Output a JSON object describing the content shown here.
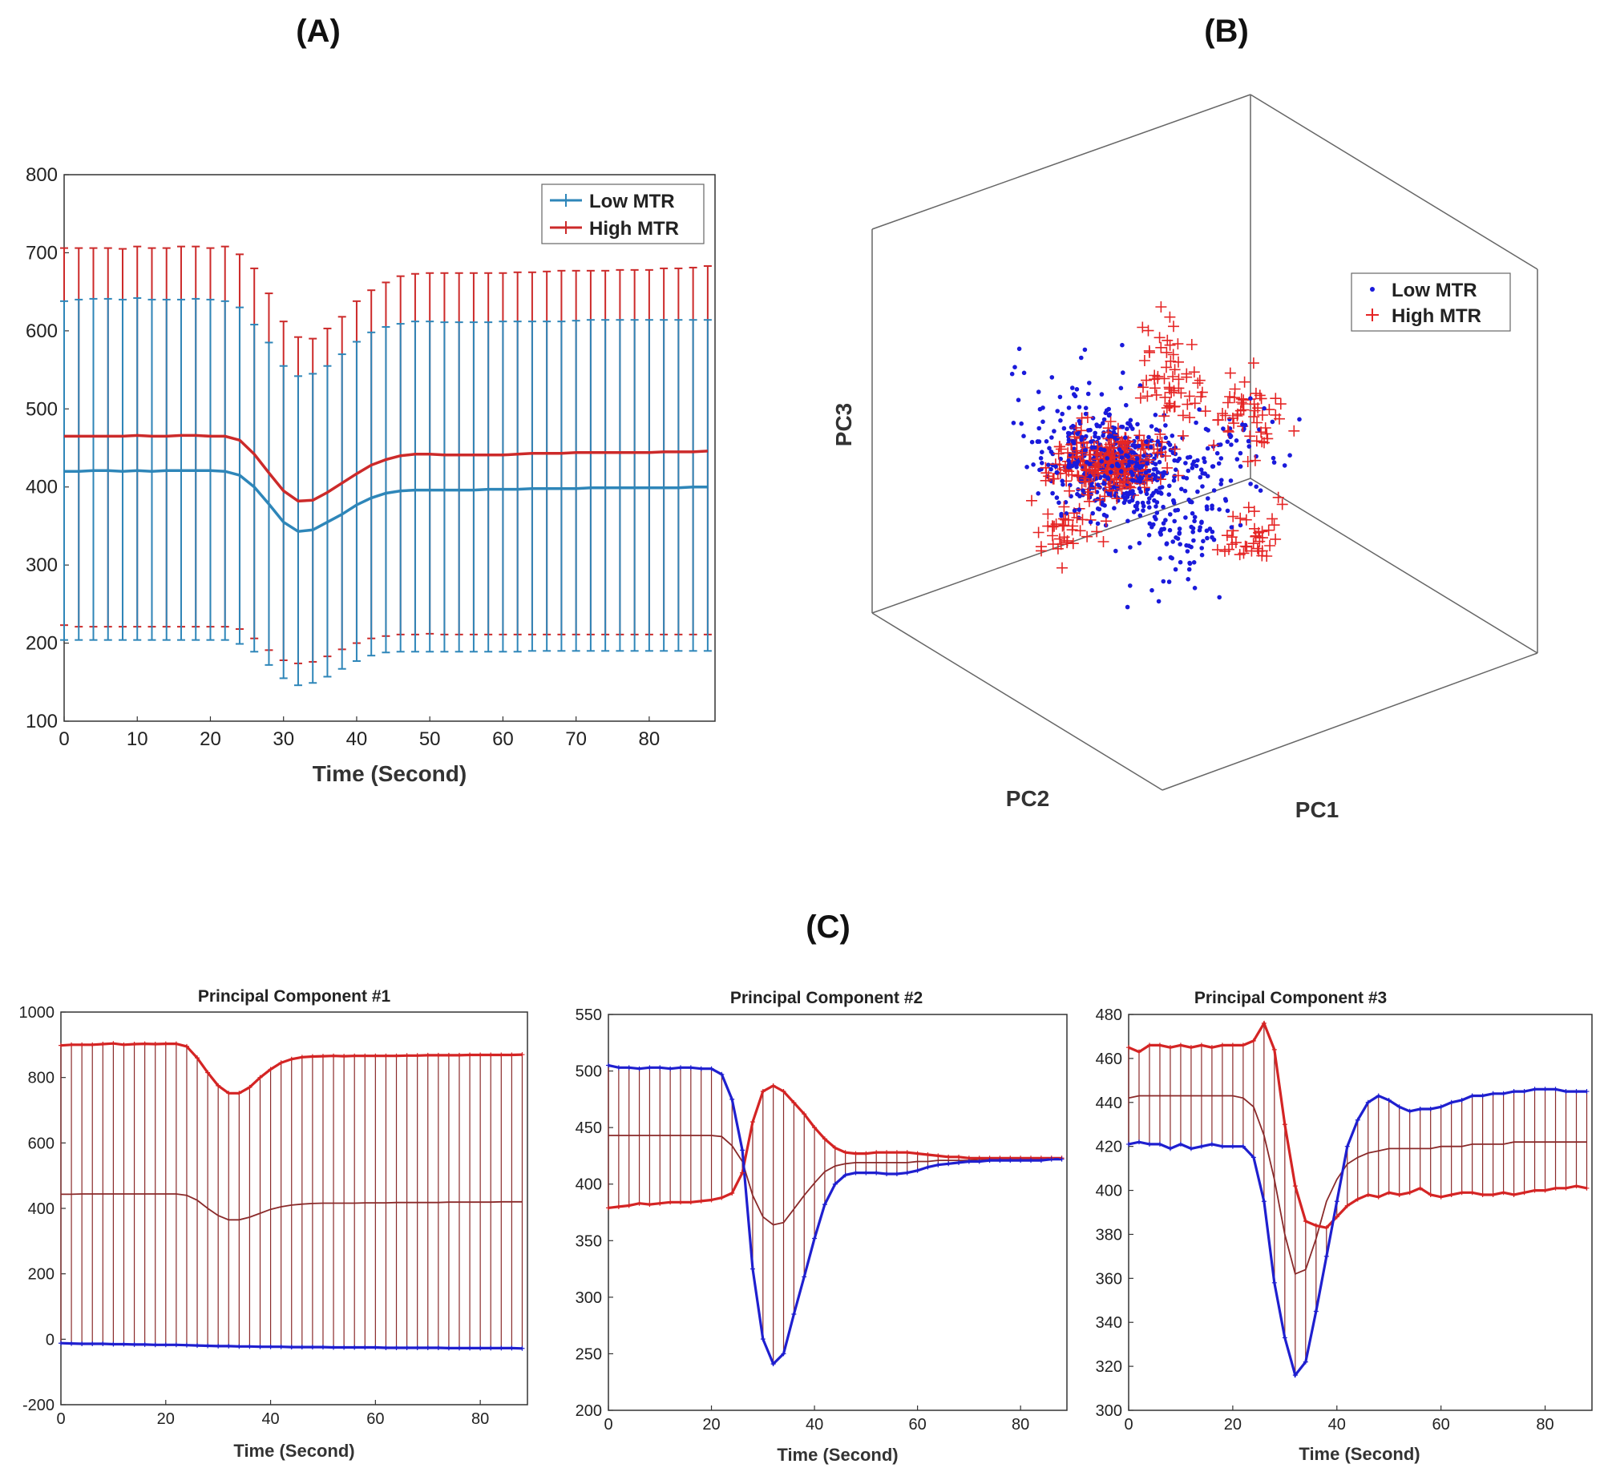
{
  "panels": {
    "a": "(A)",
    "b": "(B)",
    "c": "(C)"
  },
  "colors": {
    "low_a": "#2e86b9",
    "high_a": "#cc2a2a",
    "low_b": "#1a1adb",
    "high_b": "#e52525",
    "pc_low": "#1f1fcf",
    "pc_high": "#d42424",
    "pc_mean": "#8a2a2a"
  },
  "chart_data": [
    {
      "id": "A",
      "type": "line",
      "title": "",
      "xlabel": "Time (Second)",
      "ylabel": "",
      "xlim": [
        0,
        89
      ],
      "ylim": [
        100,
        800
      ],
      "xticks": [
        0,
        10,
        20,
        30,
        40,
        50,
        60,
        70,
        80
      ],
      "yticks": [
        100,
        200,
        300,
        400,
        500,
        600,
        700,
        800
      ],
      "error_bars": true,
      "legend": {
        "position": "top-right",
        "entries": [
          "Low MTR",
          "High MTR"
        ]
      },
      "x": [
        0,
        2,
        4,
        6,
        8,
        10,
        12,
        14,
        16,
        18,
        20,
        22,
        24,
        26,
        28,
        30,
        32,
        34,
        36,
        38,
        40,
        42,
        44,
        46,
        48,
        50,
        52,
        54,
        56,
        58,
        60,
        62,
        64,
        66,
        68,
        70,
        72,
        74,
        76,
        78,
        80,
        82,
        84,
        86,
        88
      ],
      "series": [
        {
          "name": "Low MTR",
          "values": [
            420,
            420,
            421,
            421,
            420,
            421,
            420,
            421,
            421,
            421,
            421,
            420,
            415,
            400,
            378,
            355,
            343,
            345,
            355,
            365,
            377,
            386,
            392,
            395,
            396,
            396,
            396,
            396,
            396,
            397,
            397,
            397,
            398,
            398,
            398,
            398,
            399,
            399,
            399,
            399,
            399,
            399,
            399,
            400,
            400
          ],
          "upper": [
            638,
            640,
            641,
            641,
            640,
            642,
            640,
            640,
            640,
            641,
            640,
            638,
            630,
            608,
            585,
            555,
            542,
            545,
            555,
            570,
            586,
            598,
            605,
            609,
            612,
            612,
            611,
            611,
            611,
            611,
            612,
            612,
            612,
            612,
            612,
            613,
            614,
            614,
            614,
            614,
            614,
            614,
            614,
            614,
            614
          ],
          "lower": [
            204,
            204,
            204,
            204,
            204,
            204,
            204,
            204,
            204,
            204,
            204,
            204,
            199,
            189,
            172,
            155,
            146,
            149,
            157,
            167,
            177,
            184,
            188,
            189,
            189,
            189,
            189,
            189,
            189,
            189,
            189,
            189,
            190,
            190,
            190,
            190,
            190,
            190,
            190,
            190,
            190,
            190,
            190,
            190,
            190
          ]
        },
        {
          "name": "High MTR",
          "values": [
            465,
            465,
            465,
            465,
            465,
            466,
            465,
            465,
            466,
            466,
            465,
            465,
            460,
            442,
            418,
            395,
            382,
            383,
            393,
            405,
            417,
            428,
            435,
            440,
            442,
            442,
            441,
            441,
            441,
            441,
            441,
            442,
            443,
            443,
            443,
            444,
            444,
            444,
            444,
            444,
            444,
            445,
            445,
            445,
            446
          ],
          "upper": [
            706,
            706,
            706,
            706,
            705,
            708,
            706,
            706,
            708,
            708,
            706,
            708,
            698,
            680,
            648,
            612,
            592,
            590,
            603,
            618,
            638,
            652,
            662,
            670,
            673,
            674,
            674,
            674,
            674,
            674,
            674,
            675,
            675,
            676,
            677,
            677,
            677,
            677,
            678,
            678,
            678,
            680,
            680,
            681,
            683
          ],
          "lower": [
            223,
            221,
            221,
            221,
            221,
            221,
            221,
            221,
            221,
            221,
            221,
            221,
            218,
            206,
            191,
            178,
            174,
            176,
            183,
            192,
            200,
            206,
            209,
            211,
            211,
            212,
            211,
            211,
            211,
            211,
            211,
            211,
            211,
            211,
            211,
            211,
            211,
            211,
            211,
            211,
            211,
            211,
            211,
            211,
            211
          ]
        }
      ]
    },
    {
      "id": "B",
      "type": "scatter",
      "title": "",
      "xlabel": "PC1",
      "ylabel": "PC2",
      "zlabel": "PC3",
      "legend": {
        "position": "top-right",
        "entries": [
          "Low MTR",
          "High MTR"
        ]
      },
      "series": [
        {
          "name": "Low MTR",
          "marker": "dot",
          "n_points": 560
        },
        {
          "name": "High MTR",
          "marker": "plus",
          "n_points": 420
        }
      ]
    },
    {
      "id": "C1",
      "type": "line",
      "title": "Principal Component #1",
      "xlabel": "Time (Second)",
      "ylabel": "",
      "xlim": [
        0,
        89
      ],
      "ylim": [
        -200,
        1000
      ],
      "xticks": [
        0,
        20,
        40,
        60,
        80
      ],
      "yticks": [
        -200,
        0,
        200,
        400,
        600,
        800,
        1000
      ],
      "x": [
        0,
        2,
        4,
        6,
        8,
        10,
        12,
        14,
        16,
        18,
        20,
        22,
        24,
        26,
        28,
        30,
        32,
        34,
        36,
        38,
        40,
        42,
        44,
        46,
        48,
        50,
        52,
        54,
        56,
        58,
        60,
        62,
        64,
        66,
        68,
        70,
        72,
        74,
        76,
        78,
        80,
        82,
        84,
        86,
        88
      ],
      "series": [
        {
          "name": "High MTR",
          "values": [
            898,
            900,
            900,
            900,
            902,
            904,
            900,
            902,
            903,
            902,
            903,
            903,
            895,
            860,
            815,
            775,
            752,
            752,
            770,
            800,
            825,
            845,
            856,
            862,
            864,
            865,
            866,
            865,
            866,
            866,
            866,
            866,
            866,
            867,
            867,
            868,
            868,
            868,
            868,
            869,
            869,
            869,
            869,
            869,
            870
          ]
        },
        {
          "name": "Mean",
          "values": [
            443,
            443,
            444,
            444,
            444,
            444,
            444,
            444,
            444,
            444,
            444,
            444,
            440,
            425,
            400,
            378,
            365,
            365,
            373,
            385,
            397,
            405,
            410,
            413,
            415,
            416,
            416,
            416,
            416,
            417,
            417,
            417,
            418,
            418,
            418,
            418,
            418,
            419,
            419,
            419,
            419,
            419,
            420,
            420,
            420
          ]
        },
        {
          "name": "Low MTR",
          "values": [
            -12,
            -13,
            -14,
            -14,
            -14,
            -15,
            -15,
            -16,
            -16,
            -17,
            -17,
            -17,
            -18,
            -19,
            -20,
            -21,
            -21,
            -22,
            -22,
            -23,
            -23,
            -23,
            -24,
            -24,
            -24,
            -24,
            -25,
            -25,
            -25,
            -25,
            -25,
            -26,
            -26,
            -26,
            -26,
            -26,
            -26,
            -27,
            -27,
            -27,
            -27,
            -27,
            -27,
            -27,
            -28
          ]
        }
      ]
    },
    {
      "id": "C2",
      "type": "line",
      "title": "Principal Component #2",
      "xlabel": "Time (Second)",
      "ylabel": "",
      "xlim": [
        0,
        89
      ],
      "ylim": [
        200,
        550
      ],
      "xticks": [
        0,
        20,
        40,
        60,
        80
      ],
      "yticks": [
        200,
        250,
        300,
        350,
        400,
        450,
        500,
        550
      ],
      "x": [
        0,
        2,
        4,
        6,
        8,
        10,
        12,
        14,
        16,
        18,
        20,
        22,
        24,
        26,
        28,
        30,
        32,
        34,
        36,
        38,
        40,
        42,
        44,
        46,
        48,
        50,
        52,
        54,
        56,
        58,
        60,
        62,
        64,
        66,
        68,
        70,
        72,
        74,
        76,
        78,
        80,
        82,
        84,
        86,
        88
      ],
      "series": [
        {
          "name": "Low MTR",
          "values": [
            505,
            503,
            503,
            502,
            503,
            503,
            502,
            503,
            503,
            502,
            502,
            497,
            475,
            430,
            325,
            263,
            241,
            250,
            285,
            318,
            352,
            382,
            400,
            408,
            410,
            410,
            410,
            409,
            409,
            410,
            412,
            415,
            417,
            418,
            419,
            420,
            420,
            421,
            421,
            421,
            421,
            421,
            421,
            422,
            422
          ]
        },
        {
          "name": "High MTR",
          "values": [
            379,
            380,
            381,
            383,
            382,
            383,
            384,
            384,
            384,
            385,
            386,
            388,
            392,
            410,
            455,
            482,
            487,
            482,
            472,
            462,
            450,
            440,
            432,
            428,
            427,
            427,
            428,
            428,
            428,
            428,
            427,
            426,
            425,
            424,
            424,
            423,
            423,
            423,
            423,
            423,
            423,
            423,
            423,
            423,
            423
          ]
        },
        {
          "name": "Mean",
          "values": [
            443,
            443,
            443,
            443,
            443,
            443,
            443,
            443,
            443,
            443,
            443,
            442,
            434,
            420,
            390,
            371,
            364,
            366,
            378,
            390,
            401,
            411,
            416,
            418,
            419,
            419,
            419,
            419,
            419,
            419,
            420,
            420,
            421,
            421,
            421,
            421,
            422,
            422,
            422,
            422,
            422,
            422,
            422,
            422,
            422
          ]
        }
      ]
    },
    {
      "id": "C3",
      "type": "line",
      "title": "Principal Component #3",
      "xlabel": "Time (Second)",
      "ylabel": "",
      "xlim": [
        0,
        89
      ],
      "ylim": [
        300,
        480
      ],
      "xticks": [
        0,
        20,
        40,
        60,
        80
      ],
      "yticks": [
        300,
        320,
        340,
        360,
        380,
        400,
        420,
        440,
        460,
        480
      ],
      "x": [
        0,
        2,
        4,
        6,
        8,
        10,
        12,
        14,
        16,
        18,
        20,
        22,
        24,
        26,
        28,
        30,
        32,
        34,
        36,
        38,
        40,
        42,
        44,
        46,
        48,
        50,
        52,
        54,
        56,
        58,
        60,
        62,
        64,
        66,
        68,
        70,
        72,
        74,
        76,
        78,
        80,
        82,
        84,
        86,
        88
      ],
      "series": [
        {
          "name": "High MTR",
          "values": [
            465,
            463,
            466,
            466,
            465,
            466,
            465,
            466,
            465,
            466,
            466,
            466,
            468,
            476,
            464,
            430,
            402,
            386,
            384,
            383,
            388,
            393,
            396,
            398,
            397,
            399,
            398,
            399,
            401,
            398,
            397,
            398,
            399,
            399,
            398,
            398,
            399,
            398,
            399,
            400,
            400,
            401,
            401,
            402,
            401
          ]
        },
        {
          "name": "Low MTR",
          "values": [
            421,
            422,
            421,
            421,
            419,
            421,
            419,
            420,
            421,
            420,
            420,
            420,
            415,
            395,
            358,
            333,
            316,
            322,
            345,
            370,
            395,
            420,
            432,
            440,
            443,
            441,
            438,
            436,
            437,
            437,
            438,
            440,
            441,
            443,
            443,
            444,
            444,
            445,
            445,
            446,
            446,
            446,
            445,
            445,
            445
          ]
        },
        {
          "name": "Mean",
          "values": [
            442,
            443,
            443,
            443,
            443,
            443,
            443,
            443,
            443,
            443,
            443,
            442,
            438,
            425,
            405,
            380,
            362,
            364,
            378,
            395,
            405,
            412,
            415,
            417,
            418,
            419,
            419,
            419,
            419,
            419,
            420,
            420,
            420,
            421,
            421,
            421,
            421,
            422,
            422,
            422,
            422,
            422,
            422,
            422,
            422
          ]
        }
      ]
    }
  ]
}
